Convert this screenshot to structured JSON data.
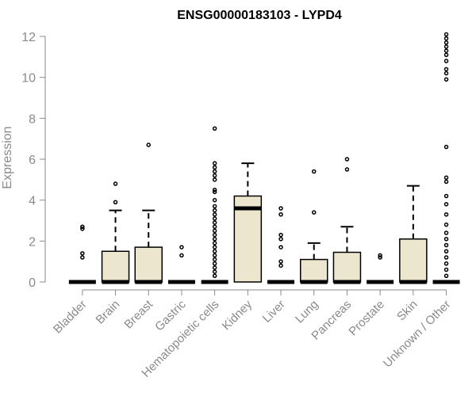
{
  "chart_data": {
    "type": "box",
    "title": "ENSG00000183103 - LYPD4",
    "xlabel": "",
    "ylabel": "Expression",
    "ylim": [
      0,
      12
    ],
    "yticks": [
      0,
      2,
      4,
      6,
      8,
      10,
      12
    ],
    "colors": {
      "box_fill": "#ede6cf",
      "box_stroke": "#000000",
      "axis": "#8a8a8a",
      "title": "#000000"
    },
    "categories": [
      "Bladder",
      "Brain",
      "Breast",
      "Gastric",
      "Hematopoietic cells",
      "Kidney",
      "Liver",
      "Lung",
      "Pancreas",
      "Prostate",
      "Skin",
      "Unknown / Other"
    ],
    "boxes": [
      {
        "category": "Bladder",
        "q1": 0,
        "median": 0,
        "q3": 0,
        "whisker_low": 0,
        "whisker_high": 0,
        "outliers": [
          1.2,
          1.4,
          2.6,
          2.7
        ]
      },
      {
        "category": "Brain",
        "q1": 0,
        "median": 0,
        "q3": 1.5,
        "whisker_low": 0,
        "whisker_high": 3.5,
        "outliers": [
          3.9,
          4.8
        ]
      },
      {
        "category": "Breast",
        "q1": 0,
        "median": 0,
        "q3": 1.7,
        "whisker_low": 0,
        "whisker_high": 3.5,
        "outliers": [
          6.7
        ]
      },
      {
        "category": "Gastric",
        "q1": 0,
        "median": 0,
        "q3": 0,
        "whisker_low": 0,
        "whisker_high": 0,
        "outliers": [
          1.3,
          1.7
        ]
      },
      {
        "category": "Hematopoietic cells",
        "q1": 0,
        "median": 0,
        "q3": 0,
        "whisker_low": 0,
        "whisker_high": 0,
        "outliers": [
          0.3,
          0.5,
          0.7,
          0.9,
          1.1,
          1.3,
          1.5,
          1.7,
          1.9,
          2.1,
          2.3,
          2.5,
          2.7,
          2.9,
          3.1,
          3.3,
          3.5,
          3.7,
          4.0,
          4.4,
          4.5,
          5.0,
          5.2,
          5.4,
          5.6,
          5.8,
          7.5
        ]
      },
      {
        "category": "Kidney",
        "q1": 0,
        "median": 3.6,
        "q3": 4.2,
        "whisker_low": 0,
        "whisker_high": 5.8,
        "outliers": []
      },
      {
        "category": "Liver",
        "q1": 0,
        "median": 0,
        "q3": 0,
        "whisker_low": 0,
        "whisker_high": 0,
        "outliers": [
          0.8,
          1.0,
          1.7,
          2.1,
          2.3,
          3.3,
          3.6
        ]
      },
      {
        "category": "Lung",
        "q1": 0,
        "median": 0,
        "q3": 1.1,
        "whisker_low": 0,
        "whisker_high": 1.9,
        "outliers": [
          3.4,
          5.4
        ]
      },
      {
        "category": "Pancreas",
        "q1": 0,
        "median": 0,
        "q3": 1.45,
        "whisker_low": 0,
        "whisker_high": 2.7,
        "outliers": [
          5.5,
          6.0
        ]
      },
      {
        "category": "Prostate",
        "q1": 0,
        "median": 0,
        "q3": 0,
        "whisker_low": 0,
        "whisker_high": 0,
        "outliers": [
          1.2,
          1.3
        ]
      },
      {
        "category": "Skin",
        "q1": 0,
        "median": 0,
        "q3": 2.1,
        "whisker_low": 0,
        "whisker_high": 4.7,
        "outliers": []
      },
      {
        "category": "Unknown / Other",
        "q1": 0,
        "median": 0,
        "q3": 0,
        "whisker_low": 0,
        "whisker_high": 0,
        "outliers": [
          0.3,
          0.6,
          0.9,
          1.2,
          1.5,
          1.8,
          2.1,
          2.4,
          2.8,
          3.3,
          3.8,
          4.2,
          4.9,
          5.1,
          6.6,
          9.9,
          10.2,
          10.4,
          10.8,
          11.1,
          11.3,
          11.5,
          11.7,
          11.9,
          12.1
        ]
      }
    ]
  }
}
